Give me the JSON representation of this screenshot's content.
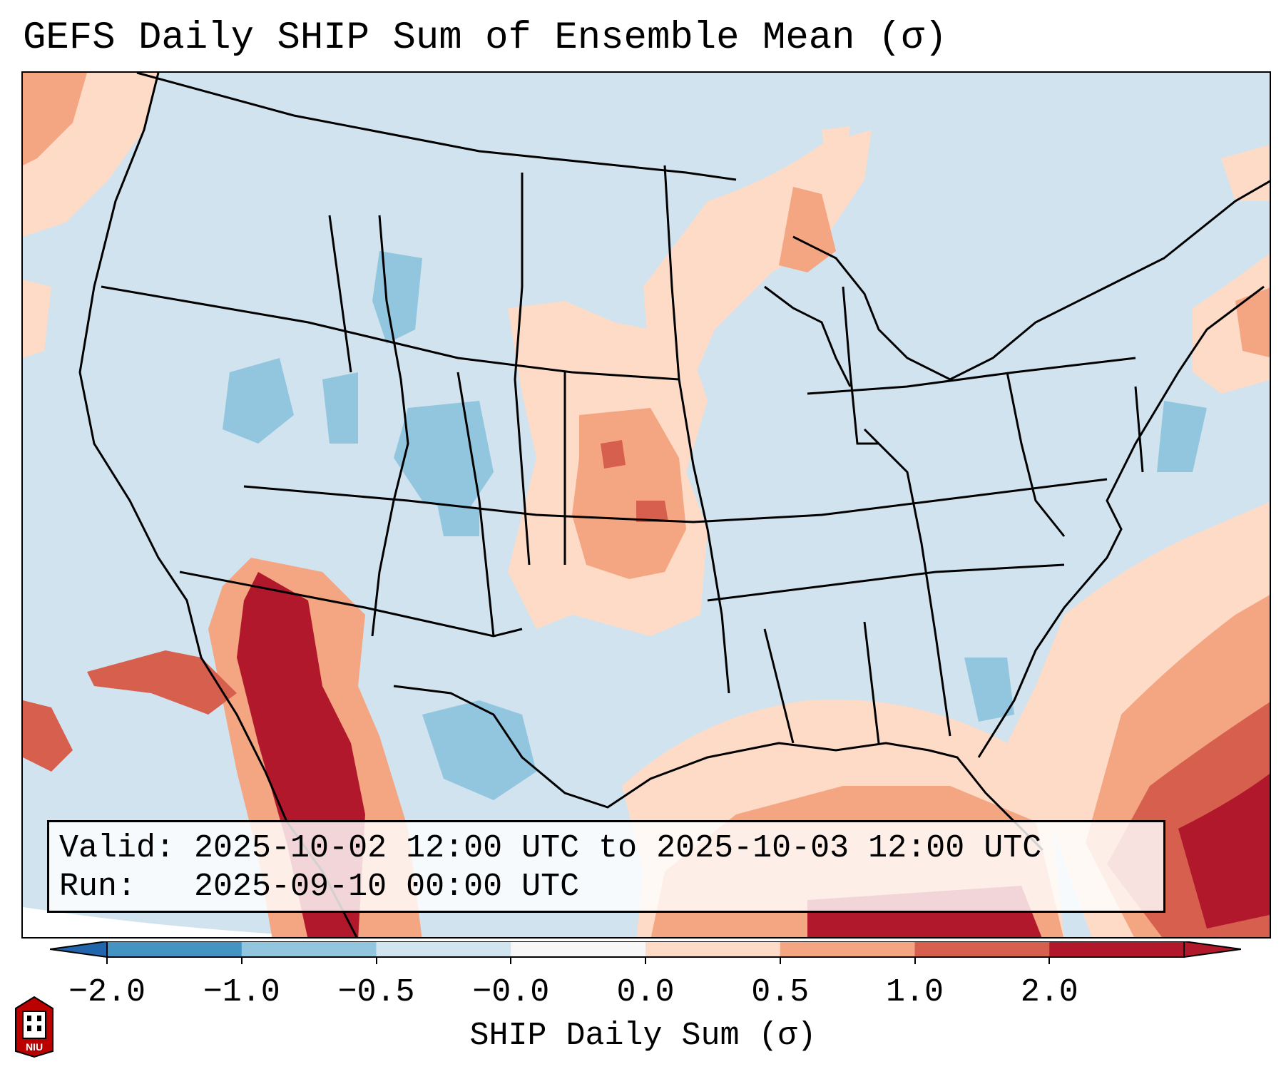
{
  "title": "GEFS Daily SHIP Sum of Ensemble Mean (σ)",
  "info": {
    "valid": "Valid: 2025-10-02 12:00 UTC to 2025-10-03 12:00 UTC",
    "run": "Run:   2025-09-10 00:00 UTC"
  },
  "colorbar": {
    "label": "SHIP Daily Sum (σ)",
    "ticks": [
      "−2.0",
      "−1.0",
      "−0.5",
      "−0.0",
      "0.0",
      "0.5",
      "1.0",
      "2.0"
    ],
    "colors": [
      "#4393c3",
      "#92c5de",
      "#d1e5f0",
      "#f7f7f7",
      "#fddbc7",
      "#f4a582",
      "#d6604d",
      "#b2182b"
    ],
    "extend_low_color": "#2166ac",
    "extend_high_color": "#b2182b"
  },
  "logo": {
    "icon": "niu-logo",
    "text": "NIU"
  }
}
